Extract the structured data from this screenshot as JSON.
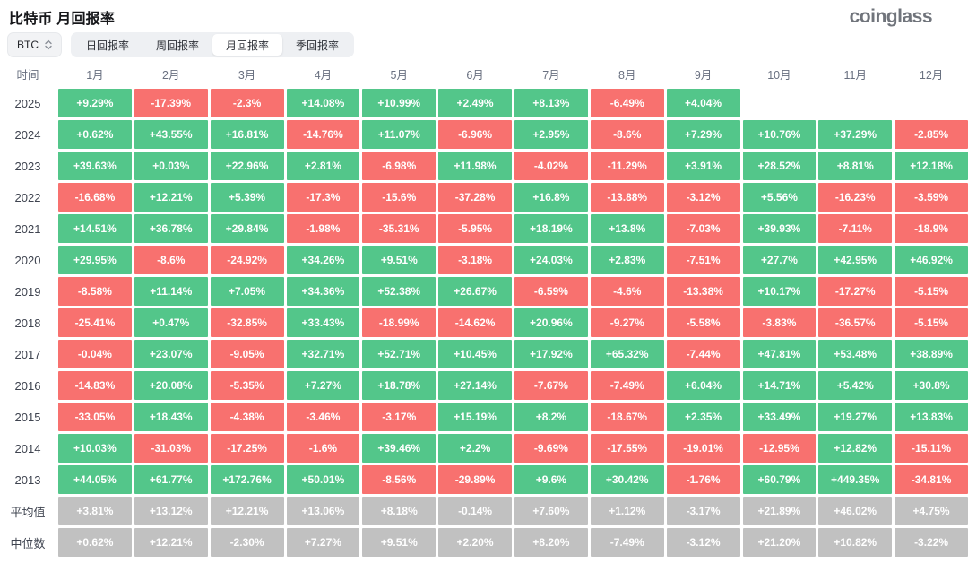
{
  "header": {
    "title": "比特币 月回报率",
    "logo": "coinglass"
  },
  "controls": {
    "symbol": "BTC",
    "tabs": [
      {
        "label": "日回报率",
        "active": false
      },
      {
        "label": "周回报率",
        "active": false
      },
      {
        "label": "月回报率",
        "active": true
      },
      {
        "label": "季回报率",
        "active": false
      }
    ]
  },
  "colors": {
    "positive": "#53c68a",
    "negative": "#f8716f",
    "summary": "#c1c1c1"
  },
  "table": {
    "corner_label": "时间",
    "columns": [
      "1月",
      "2月",
      "3月",
      "4月",
      "5月",
      "6月",
      "7月",
      "8月",
      "9月",
      "10月",
      "11月",
      "12月"
    ],
    "rows": [
      {
        "label": "2025",
        "type": "year",
        "values": [
          "+9.29%",
          "-17.39%",
          "-2.3%",
          "+14.08%",
          "+10.99%",
          "+2.49%",
          "+8.13%",
          "-6.49%",
          "+4.04%",
          "",
          "",
          ""
        ]
      },
      {
        "label": "2024",
        "type": "year",
        "values": [
          "+0.62%",
          "+43.55%",
          "+16.81%",
          "-14.76%",
          "+11.07%",
          "-6.96%",
          "+2.95%",
          "-8.6%",
          "+7.29%",
          "+10.76%",
          "+37.29%",
          "-2.85%"
        ]
      },
      {
        "label": "2023",
        "type": "year",
        "values": [
          "+39.63%",
          "+0.03%",
          "+22.96%",
          "+2.81%",
          "-6.98%",
          "+11.98%",
          "-4.02%",
          "-11.29%",
          "+3.91%",
          "+28.52%",
          "+8.81%",
          "+12.18%"
        ]
      },
      {
        "label": "2022",
        "type": "year",
        "values": [
          "-16.68%",
          "+12.21%",
          "+5.39%",
          "-17.3%",
          "-15.6%",
          "-37.28%",
          "+16.8%",
          "-13.88%",
          "-3.12%",
          "+5.56%",
          "-16.23%",
          "-3.59%"
        ]
      },
      {
        "label": "2021",
        "type": "year",
        "values": [
          "+14.51%",
          "+36.78%",
          "+29.84%",
          "-1.98%",
          "-35.31%",
          "-5.95%",
          "+18.19%",
          "+13.8%",
          "-7.03%",
          "+39.93%",
          "-7.11%",
          "-18.9%"
        ]
      },
      {
        "label": "2020",
        "type": "year",
        "values": [
          "+29.95%",
          "-8.6%",
          "-24.92%",
          "+34.26%",
          "+9.51%",
          "-3.18%",
          "+24.03%",
          "+2.83%",
          "-7.51%",
          "+27.7%",
          "+42.95%",
          "+46.92%"
        ]
      },
      {
        "label": "2019",
        "type": "year",
        "values": [
          "-8.58%",
          "+11.14%",
          "+7.05%",
          "+34.36%",
          "+52.38%",
          "+26.67%",
          "-6.59%",
          "-4.6%",
          "-13.38%",
          "+10.17%",
          "-17.27%",
          "-5.15%"
        ]
      },
      {
        "label": "2018",
        "type": "year",
        "values": [
          "-25.41%",
          "+0.47%",
          "-32.85%",
          "+33.43%",
          "-18.99%",
          "-14.62%",
          "+20.96%",
          "-9.27%",
          "-5.58%",
          "-3.83%",
          "-36.57%",
          "-5.15%"
        ]
      },
      {
        "label": "2017",
        "type": "year",
        "values": [
          "-0.04%",
          "+23.07%",
          "-9.05%",
          "+32.71%",
          "+52.71%",
          "+10.45%",
          "+17.92%",
          "+65.32%",
          "-7.44%",
          "+47.81%",
          "+53.48%",
          "+38.89%"
        ]
      },
      {
        "label": "2016",
        "type": "year",
        "values": [
          "-14.83%",
          "+20.08%",
          "-5.35%",
          "+7.27%",
          "+18.78%",
          "+27.14%",
          "-7.67%",
          "-7.49%",
          "+6.04%",
          "+14.71%",
          "+5.42%",
          "+30.8%"
        ]
      },
      {
        "label": "2015",
        "type": "year",
        "values": [
          "-33.05%",
          "+18.43%",
          "-4.38%",
          "-3.46%",
          "-3.17%",
          "+15.19%",
          "+8.2%",
          "-18.67%",
          "+2.35%",
          "+33.49%",
          "+19.27%",
          "+13.83%"
        ]
      },
      {
        "label": "2014",
        "type": "year",
        "values": [
          "+10.03%",
          "-31.03%",
          "-17.25%",
          "-1.6%",
          "+39.46%",
          "+2.2%",
          "-9.69%",
          "-17.55%",
          "-19.01%",
          "-12.95%",
          "+12.82%",
          "-15.11%"
        ]
      },
      {
        "label": "2013",
        "type": "year",
        "values": [
          "+44.05%",
          "+61.77%",
          "+172.76%",
          "+50.01%",
          "-8.56%",
          "-29.89%",
          "+9.6%",
          "+30.42%",
          "-1.76%",
          "+60.79%",
          "+449.35%",
          "-34.81%"
        ]
      },
      {
        "label": "平均值",
        "type": "summary",
        "values": [
          "+3.81%",
          "+13.12%",
          "+12.21%",
          "+13.06%",
          "+8.18%",
          "-0.14%",
          "+7.60%",
          "+1.12%",
          "-3.17%",
          "+21.89%",
          "+46.02%",
          "+4.75%"
        ]
      },
      {
        "label": "中位数",
        "type": "summary",
        "values": [
          "+0.62%",
          "+12.21%",
          "-2.30%",
          "+7.27%",
          "+9.51%",
          "+2.20%",
          "+8.20%",
          "-7.49%",
          "-3.12%",
          "+21.20%",
          "+10.82%",
          "-3.22%"
        ]
      }
    ]
  }
}
